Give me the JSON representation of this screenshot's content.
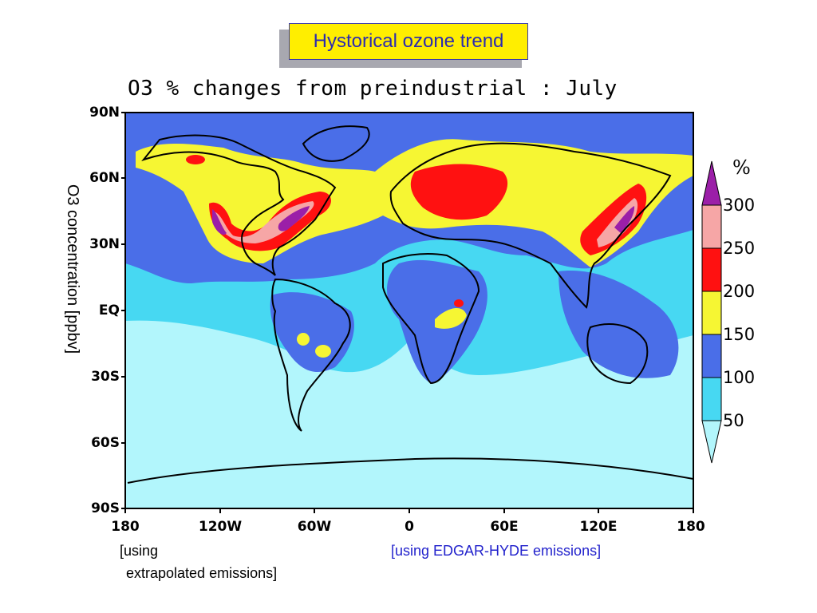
{
  "slide_title": "Hystorical ozone trend",
  "map_title": "O3 % changes from preindustrial : July",
  "side_label": "O3 concentration [ppbv]",
  "lat_labels": [
    "90N",
    "60N",
    "30N",
    "EQ",
    "30S",
    "60S",
    "90S"
  ],
  "lon_labels": [
    "180",
    "120W",
    "60W",
    "0",
    "60E",
    "120E",
    "180"
  ],
  "colorbar": {
    "unit": "%",
    "levels": [
      "300",
      "250",
      "200",
      "150",
      "100",
      "50"
    ],
    "colors": {
      "above_300": "#9b1fa8",
      "250_300": "#f6a6a6",
      "200_250": "#ff1111",
      "150_200": "#f6f633",
      "100_150": "#4a6ee8",
      "50_100": "#47d8f2",
      "below_50": "#b2f6fc"
    }
  },
  "note_left_line1": "[using",
  "note_left_line2": "extrapolated emissions]",
  "note_right": "[using EDGAR-HYDE emissions]"
}
